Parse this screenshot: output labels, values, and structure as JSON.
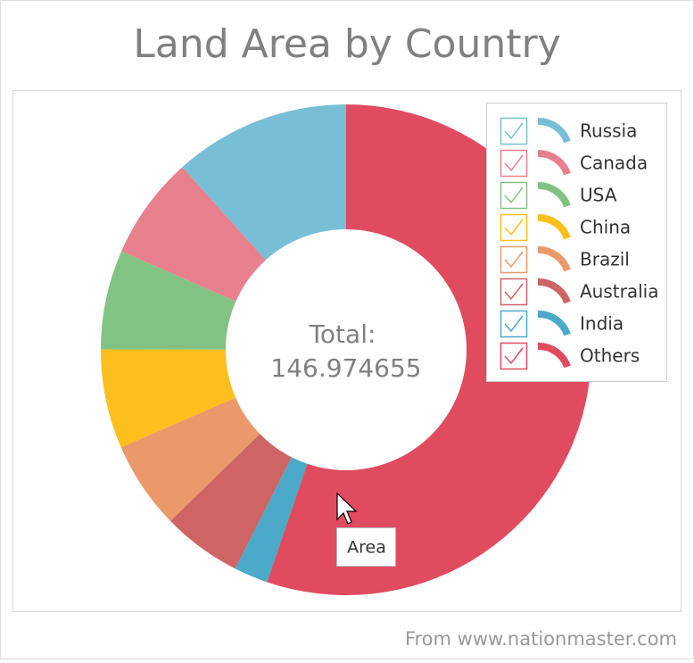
{
  "chart_data": {
    "type": "donut",
    "title": "Land Area by Country",
    "categories": [
      "Russia",
      "Canada",
      "USA",
      "China",
      "Brazil",
      "Australia",
      "India",
      "Others"
    ],
    "values": [
      17.1,
      9.98,
      9.63,
      9.6,
      8.5,
      7.7,
      3.3,
      81.16
    ],
    "colors": [
      "#78bfd6",
      "#e8808e",
      "#82c383",
      "#fdbf1d",
      "#eb996b",
      "#cf6464",
      "#4aaac8",
      "#e04b5f"
    ],
    "center_label": "Total:",
    "total": 146.974655,
    "tooltip": "Area",
    "source": "From www.nationmaster.com"
  }
}
